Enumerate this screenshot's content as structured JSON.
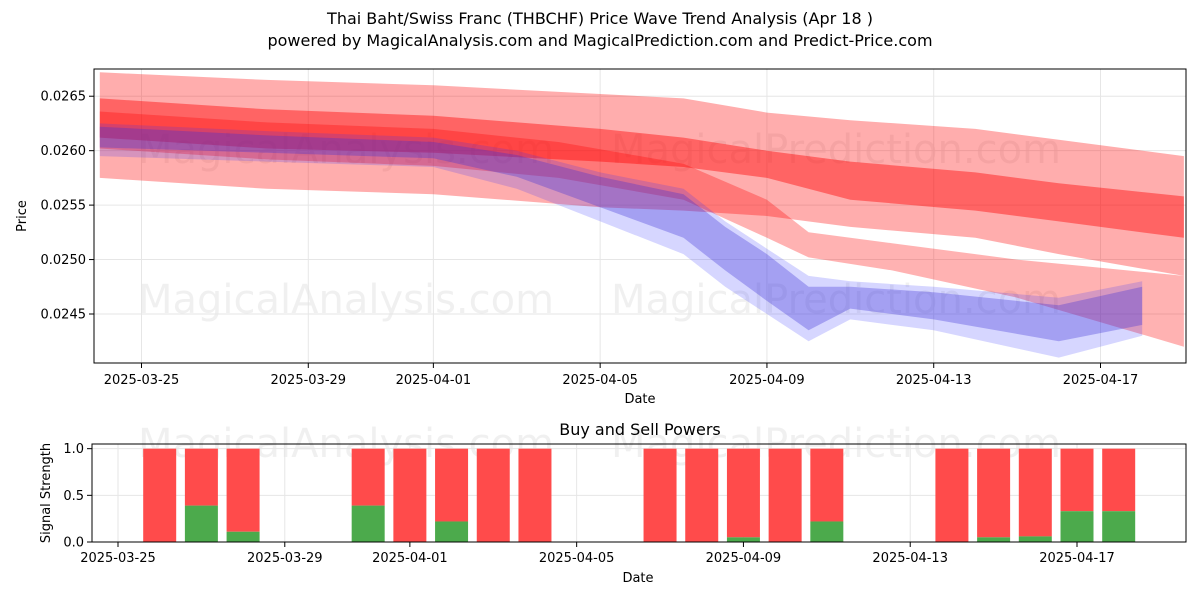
{
  "header": {
    "title": "Thai Baht/Swiss Franc (THBCHF) Price Wave Trend Analysis (Apr 18 )",
    "subtitle": "powered by MagicalAnalysis.com and MagicalPrediction.com and Predict-Price.com"
  },
  "watermarks": [
    "MagicalAnalysis.com",
    "MagicalPrediction.com"
  ],
  "chart_data": [
    {
      "type": "area",
      "title": "",
      "xlabel": "Date",
      "ylabel": "Price",
      "x_ticks": [
        "2025-03-25",
        "2025-03-29",
        "2025-04-01",
        "2025-04-05",
        "2025-04-09",
        "2025-04-13",
        "2025-04-17"
      ],
      "y_ticks": [
        "0.0245",
        "0.0250",
        "0.0255",
        "0.0260",
        "0.0265"
      ],
      "ylim": [
        0.02405,
        0.02675
      ],
      "grid": true,
      "colors": {
        "forecast_band": "#ff0000",
        "price_wave": "#0000ff"
      },
      "series": [
        {
          "x": [
            "2025-03-24",
            "2025-03-28",
            "2025-04-01",
            "2025-04-05",
            "2025-04-07",
            "2025-04-09",
            "2025-04-11",
            "2025-04-14",
            "2025-04-16",
            "2025-04-19"
          ],
          "upper": [
            0.02672,
            0.02665,
            0.0266,
            0.02652,
            0.02648,
            0.02635,
            0.02628,
            0.0262,
            0.0261,
            0.02595
          ],
          "lower": [
            0.02575,
            0.02565,
            0.0256,
            0.02548,
            0.02545,
            0.0254,
            0.0253,
            0.0252,
            0.02505,
            0.02485
          ]
        },
        {
          "x": [
            "2025-03-24",
            "2025-03-28",
            "2025-04-01",
            "2025-04-05",
            "2025-04-07",
            "2025-04-09",
            "2025-04-11",
            "2025-04-14",
            "2025-04-16",
            "2025-04-19"
          ],
          "upper": [
            0.02648,
            0.02638,
            0.02632,
            0.0262,
            0.02612,
            0.026,
            0.0259,
            0.0258,
            0.0257,
            0.02558
          ],
          "lower": [
            0.02612,
            0.02602,
            0.02598,
            0.0259,
            0.02585,
            0.02575,
            0.02555,
            0.02545,
            0.02535,
            0.0252
          ]
        },
        {
          "x": [
            "2025-03-24",
            "2025-03-28",
            "2025-04-01",
            "2025-04-04",
            "2025-04-07",
            "2025-04-09",
            "2025-04-10",
            "2025-04-12",
            "2025-04-15",
            "2025-04-19"
          ],
          "upper": [
            0.02636,
            0.02626,
            0.0262,
            0.02608,
            0.02588,
            0.02555,
            0.02525,
            0.02515,
            0.025,
            0.02485
          ],
          "lower": [
            0.02602,
            0.02592,
            0.02586,
            0.02575,
            0.02555,
            0.0252,
            0.02502,
            0.0249,
            0.02465,
            0.0242
          ]
        },
        {
          "x": [
            "2025-03-24",
            "2025-03-28",
            "2025-04-01",
            "2025-04-03",
            "2025-04-05",
            "2025-04-07",
            "2025-04-08",
            "2025-04-09",
            "2025-04-10",
            "2025-04-11",
            "2025-04-13",
            "2025-04-16",
            "2025-04-18"
          ],
          "upper": [
            0.02625,
            0.02618,
            0.02612,
            0.026,
            0.0258,
            0.02565,
            0.02535,
            0.0251,
            0.02485,
            0.0248,
            0.02475,
            0.02465,
            0.0248
          ],
          "lower": [
            0.02595,
            0.0259,
            0.02585,
            0.02565,
            0.02535,
            0.02505,
            0.02475,
            0.0245,
            0.02425,
            0.02445,
            0.02435,
            0.0241,
            0.0243
          ]
        },
        {
          "x": [
            "2025-03-24",
            "2025-03-28",
            "2025-04-01",
            "2025-04-03",
            "2025-04-05",
            "2025-04-07",
            "2025-04-08",
            "2025-04-09",
            "2025-04-10",
            "2025-04-11",
            "2025-04-13",
            "2025-04-16",
            "2025-04-18"
          ],
          "upper": [
            0.02622,
            0.02614,
            0.02608,
            0.02596,
            0.02576,
            0.0256,
            0.0253,
            0.02505,
            0.02475,
            0.02475,
            0.0247,
            0.02458,
            0.02475
          ],
          "lower": [
            0.02603,
            0.02598,
            0.02593,
            0.02576,
            0.02548,
            0.0252,
            0.0249,
            0.02462,
            0.02435,
            0.02455,
            0.02445,
            0.02425,
            0.0244
          ]
        }
      ]
    },
    {
      "type": "bar",
      "title": "Buy and Sell Powers",
      "xlabel": "Date",
      "ylabel": "Signal Strength",
      "x_ticks": [
        "2025-03-25",
        "2025-03-29",
        "2025-04-01",
        "2025-04-05",
        "2025-04-09",
        "2025-04-13",
        "2025-04-17"
      ],
      "y_ticks": [
        "0.0",
        "0.5",
        "1.0"
      ],
      "ylim": [
        0,
        1.05
      ],
      "grid": true,
      "colors": {
        "buy": "#4caa4c",
        "sell": "#ff4b4b"
      },
      "categories": [
        "2025-03-26",
        "2025-03-27",
        "2025-03-28",
        "2025-03-31",
        "2025-04-01",
        "2025-04-02",
        "2025-04-03",
        "2025-04-04",
        "2025-04-07",
        "2025-04-08",
        "2025-04-09",
        "2025-04-10",
        "2025-04-11",
        "2025-04-14",
        "2025-04-15",
        "2025-04-16",
        "2025-04-17",
        "2025-04-18"
      ],
      "series": [
        {
          "name": "Buy",
          "values": [
            0,
            0.39,
            0.11,
            0.39,
            0,
            0.22,
            0,
            0,
            0,
            0,
            0.05,
            0,
            0.22,
            0,
            0.05,
            0.06,
            0.33,
            0.33
          ]
        },
        {
          "name": "Sell",
          "values": [
            1,
            0.61,
            0.89,
            0.61,
            1,
            0.78,
            1,
            1,
            1,
            1,
            0.95,
            1,
            0.78,
            1,
            0.95,
            0.94,
            0.67,
            0.67
          ]
        }
      ]
    }
  ]
}
